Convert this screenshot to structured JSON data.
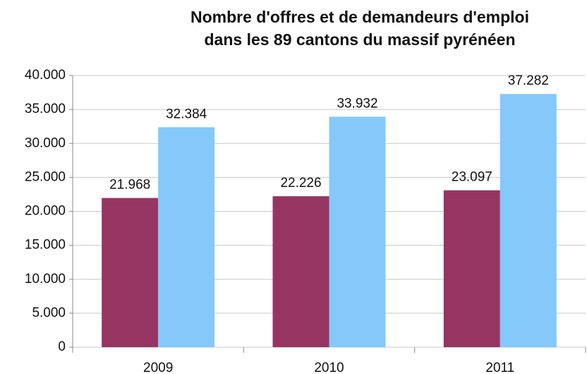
{
  "chart_data": {
    "type": "bar",
    "title": [
      "Nombre d'offres et de demandeurs d'emploi",
      "dans les 89 cantons du massif pyrénéen"
    ],
    "categories": [
      "2009",
      "2010",
      "2011"
    ],
    "series": [
      {
        "color": "#963562",
        "values": [
          21968,
          22226,
          23097
        ],
        "value_labels": [
          "21.968",
          "22.226",
          "23.097"
        ]
      },
      {
        "color": "#85c8fa",
        "values": [
          32384,
          33932,
          37282
        ],
        "value_labels": [
          "32.384",
          "33.932",
          "37.282"
        ]
      }
    ],
    "ylim": [
      0,
      40000
    ],
    "yticks": [
      0,
      {
        "value": 5000,
        "label": "5.000"
      },
      {
        "value": 10000,
        "label": "10.000"
      },
      {
        "value": 15000,
        "label": "15.000"
      },
      {
        "value": 20000,
        "label": "20.000"
      },
      {
        "value": 25000,
        "label": "25.000"
      },
      {
        "value": 30000,
        "label": "30.000"
      },
      {
        "value": 35000,
        "label": "35.000"
      },
      {
        "value": 40000,
        "label": "40.000"
      }
    ],
    "grid": true
  }
}
